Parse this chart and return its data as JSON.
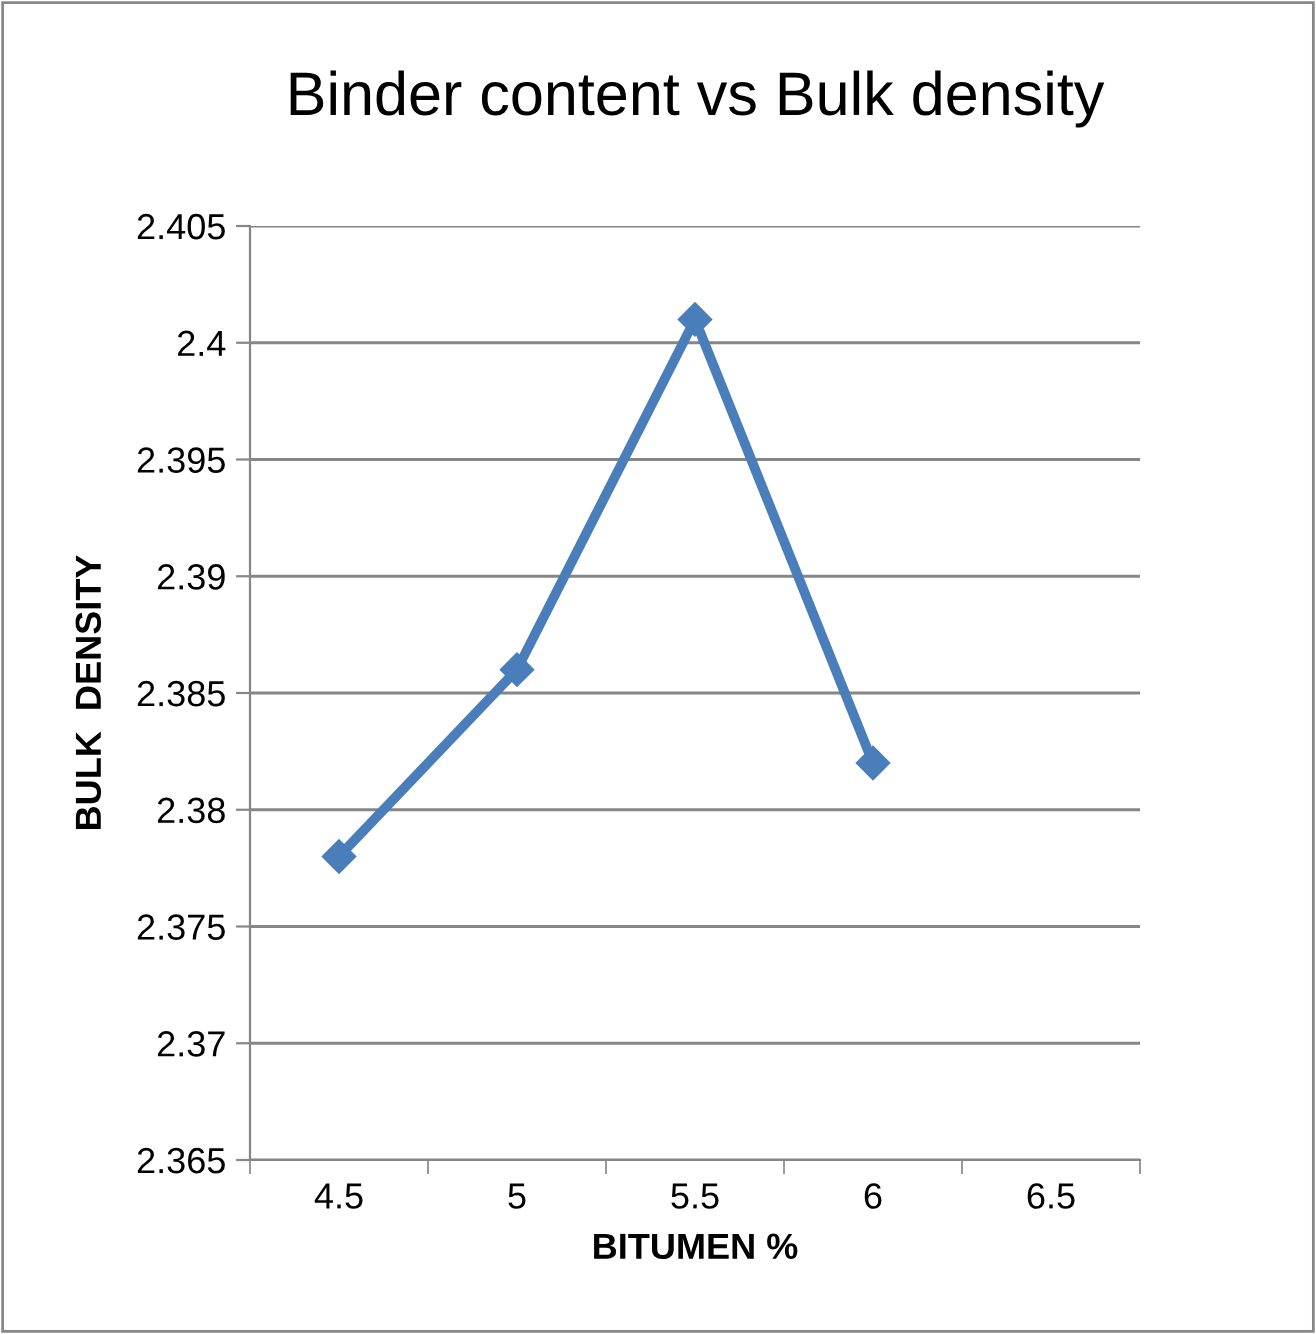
{
  "chart_data": {
    "type": "line",
    "title": "Binder content vs Bulk density",
    "xlabel": "BITUMEN %",
    "ylabel": "BULK  DENSITY",
    "categories": [
      "4.5",
      "5",
      "5.5",
      "6",
      "6.5"
    ],
    "series": [
      {
        "color": "#4a7ebb",
        "values": [
          2.378,
          2.386,
          2.401,
          2.382,
          null
        ]
      }
    ],
    "ylim": [
      2.365,
      2.405
    ],
    "yticks": [
      2.365,
      2.37,
      2.375,
      2.38,
      2.385,
      2.39,
      2.395,
      2.4,
      2.405
    ],
    "grid": "y",
    "legend": false,
    "marker": "diamond",
    "line_style": "solid"
  }
}
